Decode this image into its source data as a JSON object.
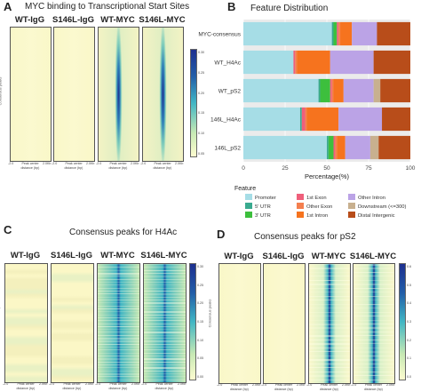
{
  "panels": {
    "A": {
      "letter": "A",
      "title": "MYC binding to Transcriptional Start Sites",
      "columns": [
        "WT-IgG",
        "S146L-IgG",
        "WT-MYC",
        "S146L-MYC"
      ],
      "x_ticks": [
        "-2.0",
        "Peak center",
        "2.0Kb"
      ],
      "x_label": "distance (bp)",
      "y_label": "Consensus peaks",
      "colorbar_ticks": [
        "0.30",
        "0.25",
        "0.20",
        "0.15",
        "0.10",
        "0.05"
      ]
    },
    "B": {
      "letter": "B",
      "title": "Feature Distribution",
      "legend_title": "Feature"
    },
    "C": {
      "letter": "C",
      "title": "Consensus peaks for H4Ac",
      "columns": [
        "WT-IgG",
        "S146L-IgG",
        "WT-MYC",
        "S146L-MYC"
      ],
      "x_ticks": [
        "-2.0",
        "Peak center",
        "2.0Kb"
      ],
      "x_label": "distance (bp)",
      "y_label": "Consensus peaks",
      "colorbar_ticks": [
        "0.30",
        "0.25",
        "0.20",
        "0.15",
        "0.10",
        "0.05",
        "0.00"
      ]
    },
    "D": {
      "letter": "D",
      "title": "Consensus peaks for pS2",
      "columns": [
        "WT-IgG",
        "S146L-IgG",
        "WT-MYC",
        "S146L-MYC"
      ],
      "x_ticks": [
        "-2.0",
        "Peak center",
        "2.0Kb"
      ],
      "x_label": "distance (bp)",
      "y_label": "Consensus peaks",
      "colorbar_ticks": [
        "0.6",
        "0.5",
        "0.4",
        "0.3",
        "0.2",
        "0.1",
        "0.0"
      ]
    }
  },
  "colors": {
    "heatmap_low": "#fdfccf",
    "heatmap_mid": "#41b6c4",
    "heatmap_high": "#1d2f8f"
  },
  "chart_data": [
    {
      "type": "heatmap",
      "panel": "A",
      "title": "MYC binding to Transcriptional Start Sites",
      "columns": [
        "WT-IgG",
        "S146L-IgG",
        "WT-MYC",
        "S146L-MYC"
      ],
      "xlabel": "distance (bp)",
      "ylabel": "Consensus peaks",
      "x_ticks": [
        "-2.0",
        "Peak center",
        "2.0Kb"
      ],
      "colorbar_range": [
        0.05,
        0.3
      ]
    },
    {
      "type": "bar",
      "panel": "B",
      "orientation": "horizontal",
      "stacked": true,
      "title": "Feature Distribution",
      "categories": [
        "MYC-consensus",
        "WT_H4Ac",
        "WT_pS2",
        "146L_H4Ac",
        "146L_pS2"
      ],
      "xlabel": "Percentage(%)",
      "ylabel": "",
      "xlim": [
        0,
        100
      ],
      "x_ticks": [
        "0",
        "25",
        "50",
        "75",
        "100"
      ],
      "legend_title": "Feature",
      "legend_position": "bottom",
      "series": [
        {
          "name": "Promoter",
          "color": "#a6dde6",
          "values": [
            53,
            30,
            45,
            34,
            50
          ]
        },
        {
          "name": "5' UTR",
          "color": "#3aaa8f",
          "values": [
            1,
            0,
            1,
            1,
            1
          ]
        },
        {
          "name": "3' UTR",
          "color": "#3dbf3d",
          "values": [
            2,
            0,
            6,
            0,
            3
          ]
        },
        {
          "name": "1st Exon",
          "color": "#ef5f7b",
          "values": [
            1,
            1,
            1,
            2,
            1
          ]
        },
        {
          "name": "Other Exon",
          "color": "#f47f4f",
          "values": [
            1,
            1,
            1,
            1,
            1
          ]
        },
        {
          "name": "1st Intron",
          "color": "#f6731e",
          "values": [
            7,
            20,
            6,
            19,
            5
          ]
        },
        {
          "name": "Other Intron",
          "color": "#bba3e6",
          "values": [
            15,
            26,
            18,
            26,
            15
          ]
        },
        {
          "name": "Downstream (<=300)",
          "color": "#c8b08f",
          "values": [
            0,
            0,
            4,
            0,
            5
          ]
        },
        {
          "name": "Distal Intergenic",
          "color": "#b84d1a",
          "values": [
            20,
            22,
            18,
            17,
            19
          ]
        }
      ]
    },
    {
      "type": "heatmap",
      "panel": "C",
      "title": "Consensus peaks for H4Ac",
      "columns": [
        "WT-IgG",
        "S146L-IgG",
        "WT-MYC",
        "S146L-MYC"
      ],
      "xlabel": "distance (bp)",
      "ylabel": "Consensus peaks",
      "x_ticks": [
        "-2.0",
        "Peak center",
        "2.0Kb"
      ],
      "colorbar_range": [
        0.0,
        0.3
      ]
    },
    {
      "type": "heatmap",
      "panel": "D",
      "title": "Consensus peaks for pS2",
      "columns": [
        "WT-IgG",
        "S146L-IgG",
        "WT-MYC",
        "S146L-MYC"
      ],
      "xlabel": "distance (bp)",
      "ylabel": "Consensus peaks",
      "x_ticks": [
        "-2.0",
        "Peak center",
        "2.0Kb"
      ],
      "colorbar_range": [
        0.0,
        0.6
      ]
    }
  ]
}
